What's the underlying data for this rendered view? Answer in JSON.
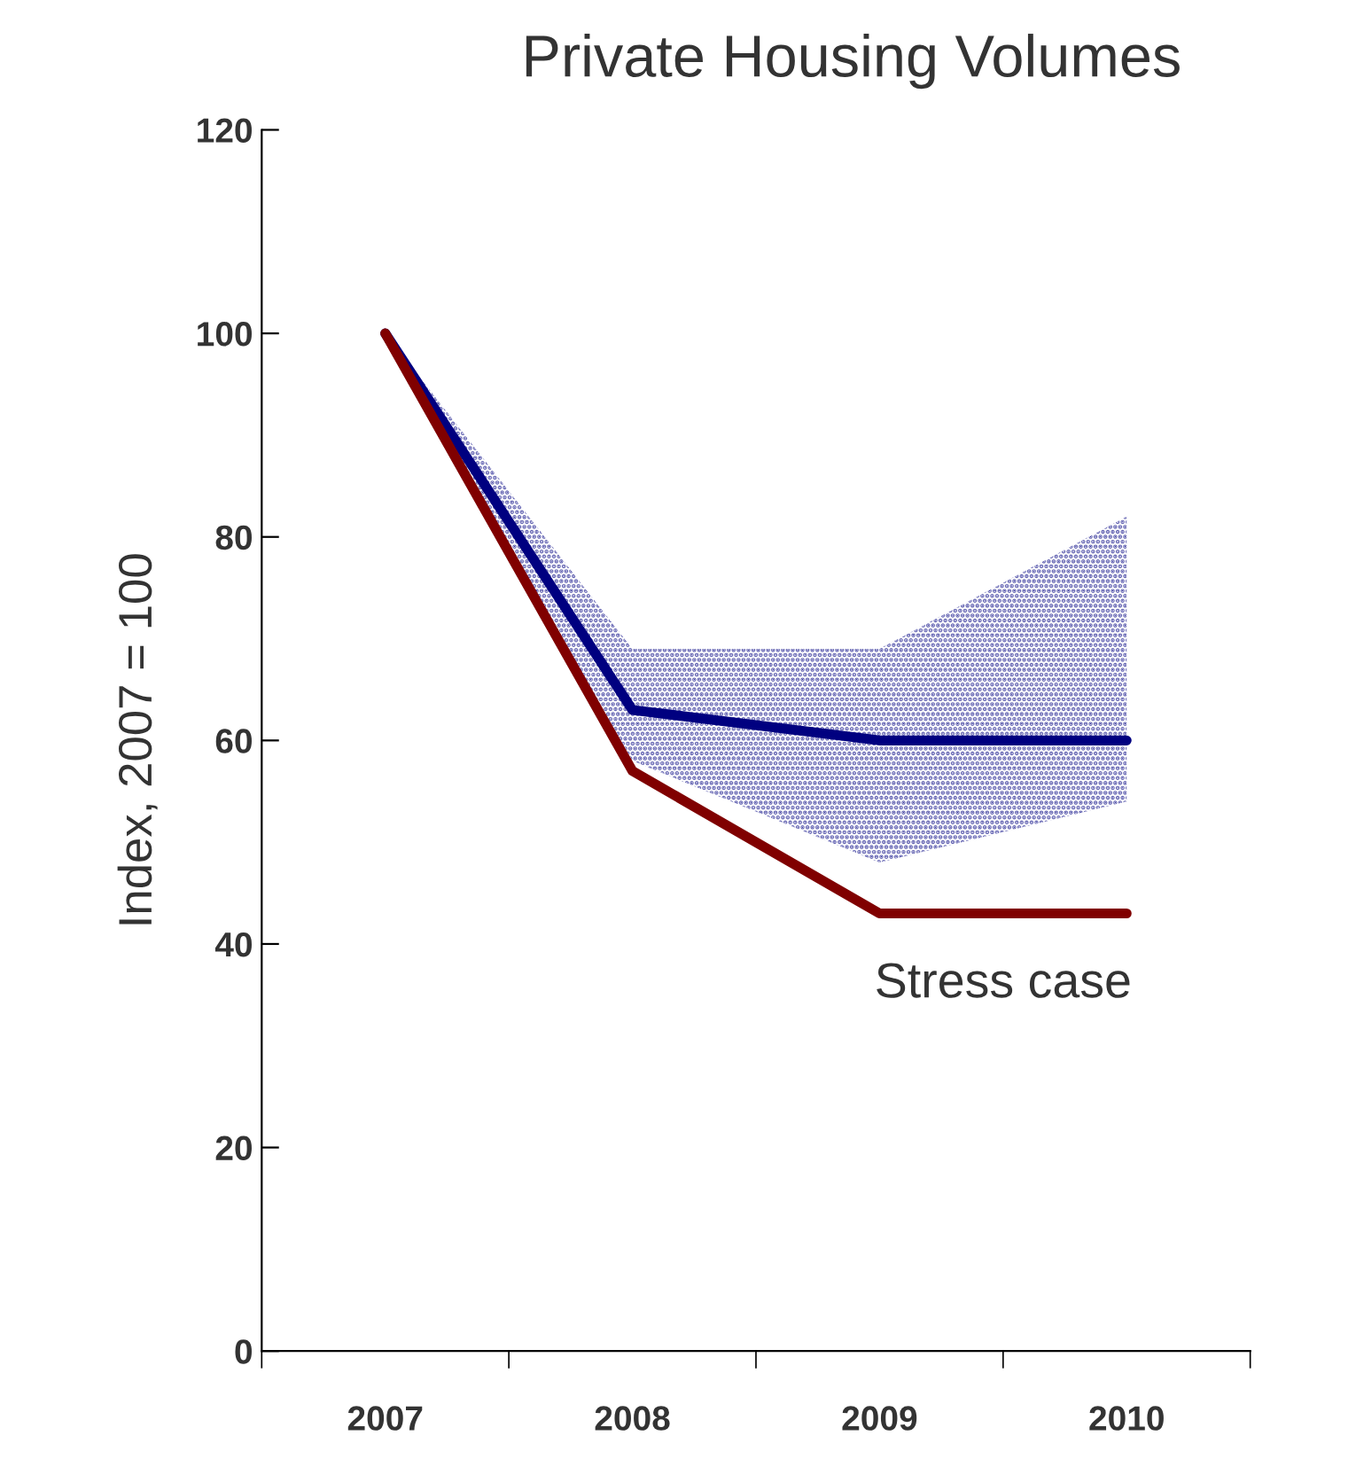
{
  "chart_data": {
    "type": "line",
    "title": "Private Housing Volumes",
    "ylabel": "Index, 2007 = 100",
    "categories": [
      "2007",
      "2008",
      "2009",
      "2010"
    ],
    "series": [
      {
        "color": "#000080",
        "values": [
          100,
          63,
          60,
          60
        ],
        "lower": [
          100,
          58,
          48,
          54
        ],
        "upper": [
          100,
          69,
          69,
          82
        ]
      },
      {
        "name": "Stress case",
        "color": "#800000",
        "values": [
          100,
          57,
          43,
          43
        ]
      }
    ],
    "ylim": [
      0,
      120
    ],
    "yticks": [
      0,
      20,
      40,
      60,
      80,
      100,
      120
    ],
    "grid": false,
    "legend": false,
    "marker": "none",
    "line_style": "solid"
  }
}
